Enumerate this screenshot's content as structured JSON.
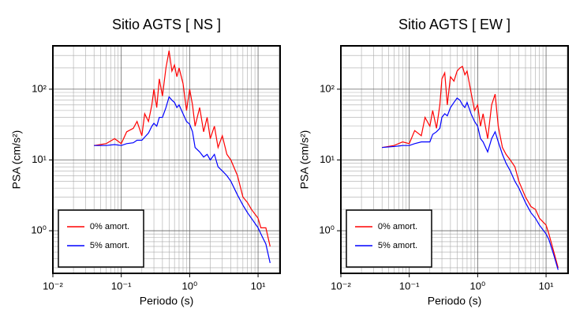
{
  "chart_data": [
    {
      "type": "line",
      "title": "Sitio AGTS [ NS ]",
      "xlabel": "Periodo (s)",
      "ylabel": "PSA (cm/s²)",
      "x": [
        0.04,
        0.06,
        0.08,
        0.1,
        0.12,
        0.15,
        0.17,
        0.2,
        0.22,
        0.25,
        0.28,
        0.3,
        0.33,
        0.36,
        0.4,
        0.45,
        0.5,
        0.55,
        0.6,
        0.65,
        0.7,
        0.8,
        0.9,
        1.0,
        1.1,
        1.2,
        1.4,
        1.6,
        1.8,
        2.0,
        2.3,
        2.6,
        3.0,
        3.5,
        4.0,
        5,
        6,
        7,
        8,
        10,
        11,
        13,
        15
      ],
      "series": [
        {
          "name": "0% amort.",
          "color": "#ff0000",
          "values": [
            16,
            17,
            20,
            17,
            25,
            28,
            35,
            22,
            45,
            35,
            60,
            100,
            55,
            140,
            80,
            200,
            350,
            180,
            220,
            150,
            200,
            120,
            50,
            100,
            60,
            30,
            55,
            25,
            40,
            20,
            30,
            15,
            22,
            12,
            10,
            6,
            3,
            2.5,
            2,
            1.5,
            1.1,
            1.1,
            0.6
          ]
        },
        {
          "name": "5% amort.",
          "color": "#0000ff",
          "values": [
            16,
            16,
            16.5,
            16,
            17,
            17.5,
            19,
            19,
            21,
            24,
            30,
            33,
            30,
            40,
            40,
            55,
            78,
            70,
            65,
            55,
            60,
            45,
            35,
            32,
            25,
            15,
            13,
            11,
            12,
            10,
            12,
            8,
            7,
            6,
            5,
            3.2,
            2.3,
            1.8,
            1.5,
            1.1,
            0.9,
            0.65,
            0.35
          ]
        }
      ],
      "xlog": true,
      "ylog": true,
      "grid": true,
      "minor_grid": true,
      "legend": "lower left",
      "xlim": [
        0.01,
        21
      ],
      "ylim": [
        0.25,
        410
      ],
      "xticks": [
        {
          "value": 0.01,
          "label": "10⁻²"
        },
        {
          "value": 0.1,
          "label": "10⁻¹"
        },
        {
          "value": 1,
          "label": "10⁰"
        },
        {
          "value": 10,
          "label": "10¹"
        }
      ],
      "yticks": [
        {
          "value": 1,
          "label": "10⁰"
        },
        {
          "value": 10,
          "label": "10¹"
        },
        {
          "value": 100,
          "label": "10²"
        }
      ]
    },
    {
      "type": "line",
      "title": "Sitio AGTS [ EW ]",
      "xlabel": "Periodo (s)",
      "ylabel": "PSA (cm/s²)",
      "x": [
        0.04,
        0.06,
        0.08,
        0.1,
        0.12,
        0.15,
        0.17,
        0.2,
        0.22,
        0.25,
        0.28,
        0.3,
        0.33,
        0.36,
        0.4,
        0.45,
        0.5,
        0.55,
        0.6,
        0.65,
        0.7,
        0.8,
        0.9,
        1.0,
        1.1,
        1.2,
        1.4,
        1.6,
        1.8,
        2.0,
        2.3,
        2.6,
        3.0,
        3.5,
        4.0,
        5,
        6,
        7,
        8,
        10,
        11,
        13,
        15
      ],
      "series": [
        {
          "name": "0% amort.",
          "color": "#ff0000",
          "values": [
            15,
            16,
            18,
            17,
            26,
            22,
            40,
            30,
            50,
            28,
            60,
            140,
            170,
            60,
            150,
            130,
            180,
            200,
            210,
            160,
            180,
            90,
            50,
            60,
            30,
            45,
            20,
            60,
            85,
            30,
            15,
            12,
            10,
            8,
            5,
            3,
            2.2,
            2,
            1.5,
            1.2,
            0.9,
            0.5,
            0.3
          ]
        },
        {
          "name": "5% amort.",
          "color": "#0000ff",
          "values": [
            15,
            15.5,
            16,
            16,
            17,
            18,
            18,
            18,
            23,
            25,
            28,
            40,
            45,
            42,
            55,
            65,
            75,
            70,
            60,
            55,
            65,
            45,
            35,
            30,
            20,
            18,
            13,
            20,
            25,
            18,
            12,
            9,
            7,
            5,
            4,
            2.5,
            1.8,
            1.5,
            1.2,
            0.9,
            0.75,
            0.45,
            0.28
          ]
        }
      ],
      "xlog": true,
      "ylog": true,
      "grid": true,
      "minor_grid": true,
      "legend": "lower left",
      "xlim": [
        0.01,
        21
      ],
      "ylim": [
        0.25,
        410
      ],
      "xticks": [
        {
          "value": 0.01,
          "label": "10⁻²"
        },
        {
          "value": 0.1,
          "label": "10⁻¹"
        },
        {
          "value": 1,
          "label": "10⁰"
        },
        {
          "value": 10,
          "label": "10¹"
        }
      ],
      "yticks": [
        {
          "value": 1,
          "label": "10⁰"
        },
        {
          "value": 10,
          "label": "10¹"
        },
        {
          "value": 100,
          "label": "10²"
        }
      ]
    }
  ]
}
